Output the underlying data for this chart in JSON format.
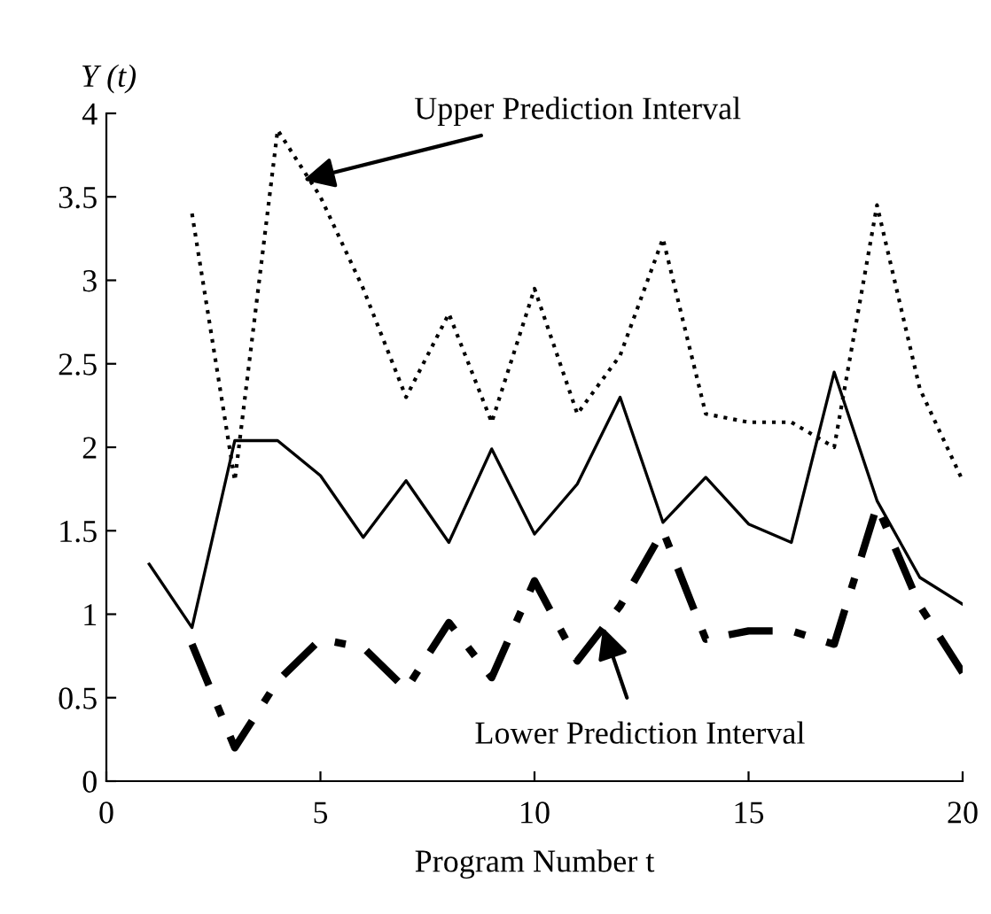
{
  "chart_data": {
    "type": "line",
    "xlabel": "Program Number t",
    "ylabel": "Y (t)",
    "xlim": [
      0,
      20
    ],
    "xticks": [
      0,
      5,
      10,
      15,
      20
    ],
    "ylim": [
      0,
      4
    ],
    "yticks": [
      0,
      0.5,
      1,
      1.5,
      2,
      2.5,
      3,
      3.5,
      4
    ],
    "grid": false,
    "marker": "none",
    "series": [
      {
        "color": "#000000",
        "line_style": "solid",
        "x": [
          1,
          2,
          3,
          4,
          5,
          6,
          7,
          8,
          9,
          10,
          11,
          12,
          13,
          14,
          15,
          16,
          17,
          18,
          19,
          20
        ],
        "values": [
          1.3,
          0.92,
          2.04,
          2.04,
          1.83,
          1.46,
          1.8,
          1.43,
          1.99,
          1.48,
          1.78,
          2.3,
          1.55,
          1.82,
          1.54,
          1.43,
          2.45,
          1.68,
          1.22,
          1.06
        ]
      },
      {
        "color": "#000000",
        "line_style": "dotted",
        "x": [
          2,
          3,
          4,
          5,
          6,
          7,
          8,
          9,
          10,
          11,
          12,
          13,
          14,
          15,
          16,
          17,
          18,
          19,
          20
        ],
        "values": [
          3.4,
          1.8,
          3.9,
          3.5,
          2.95,
          2.3,
          2.8,
          2.15,
          2.95,
          2.2,
          2.55,
          3.25,
          2.2,
          2.15,
          2.15,
          2.0,
          3.45,
          2.35,
          1.8
        ]
      },
      {
        "color": "#000000",
        "line_style": "dashed",
        "x": [
          2,
          3,
          4,
          5,
          6,
          7,
          8,
          9,
          10,
          11,
          12,
          13,
          14,
          15,
          16,
          17,
          18,
          19,
          20
        ],
        "values": [
          0.82,
          0.2,
          0.6,
          0.85,
          0.8,
          0.55,
          0.95,
          0.62,
          1.2,
          0.72,
          1.05,
          1.5,
          0.85,
          0.9,
          0.9,
          0.82,
          1.65,
          1.05,
          0.65
        ]
      }
    ],
    "annotations": [
      {
        "text": "Upper Prediction Interval",
        "x": 4.6,
        "y": 3.6
      },
      {
        "text": "Lower Prediction Interval",
        "x": 11.6,
        "y": 0.92
      }
    ]
  }
}
